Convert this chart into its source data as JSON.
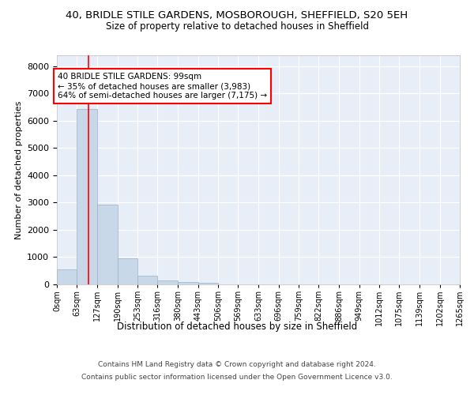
{
  "title": "40, BRIDLE STILE GARDENS, MOSBOROUGH, SHEFFIELD, S20 5EH",
  "subtitle": "Size of property relative to detached houses in Sheffield",
  "xlabel": "Distribution of detached houses by size in Sheffield",
  "ylabel": "Number of detached properties",
  "footer_line1": "Contains HM Land Registry data © Crown copyright and database right 2024.",
  "footer_line2": "Contains public sector information licensed under the Open Government Licence v3.0.",
  "bar_color": "#c8d8e8",
  "bar_edge_color": "#9ab0c8",
  "bg_color": "#e8eef8",
  "grid_color": "#ffffff",
  "annotation_line1": "40 BRIDLE STILE GARDENS: 99sqm",
  "annotation_line2": "← 35% of detached houses are smaller (3,983)",
  "annotation_line3": "64% of semi-detached houses are larger (7,175) →",
  "property_size": 99,
  "bin_width": 63,
  "bins": [
    0,
    63,
    127,
    190,
    253,
    316,
    380,
    443,
    506,
    569,
    633,
    696,
    759,
    822,
    886,
    949,
    1012,
    1075,
    1139,
    1202,
    1265
  ],
  "bin_labels": [
    "0sqm",
    "63sqm",
    "127sqm",
    "190sqm",
    "253sqm",
    "316sqm",
    "380sqm",
    "443sqm",
    "506sqm",
    "569sqm",
    "633sqm",
    "696sqm",
    "759sqm",
    "822sqm",
    "886sqm",
    "949sqm",
    "1012sqm",
    "1075sqm",
    "1139sqm",
    "1202sqm",
    "1265sqm"
  ],
  "counts": [
    540,
    6420,
    2940,
    960,
    330,
    150,
    100,
    70,
    0,
    0,
    0,
    0,
    0,
    0,
    0,
    0,
    0,
    0,
    0,
    0
  ],
  "ylim": [
    0,
    8400
  ],
  "yticks": [
    0,
    1000,
    2000,
    3000,
    4000,
    5000,
    6000,
    7000,
    8000
  ]
}
